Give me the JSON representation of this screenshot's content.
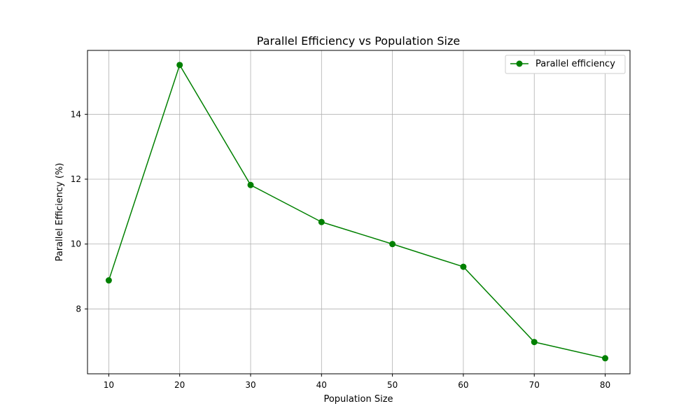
{
  "chart_data": {
    "type": "line",
    "title": "Parallel Efficiency vs Population Size",
    "xlabel": "Population Size",
    "ylabel": "Parallel Efficiency (%)",
    "x": [
      10,
      20,
      30,
      40,
      50,
      60,
      70,
      80
    ],
    "series": [
      {
        "name": "Parallel efficiency",
        "values": [
          8.88,
          15.52,
          11.82,
          10.68,
          10.0,
          9.3,
          6.98,
          6.48
        ],
        "color": "#008000",
        "marker": "circle"
      }
    ],
    "xlim": [
      7.0,
      83.5
    ],
    "ylim": [
      6.0,
      15.97
    ],
    "xticks": [
      10,
      20,
      30,
      40,
      50,
      60,
      70,
      80
    ],
    "yticks": [
      8,
      10,
      12,
      14
    ],
    "grid": true,
    "legend_position": "top-right"
  }
}
